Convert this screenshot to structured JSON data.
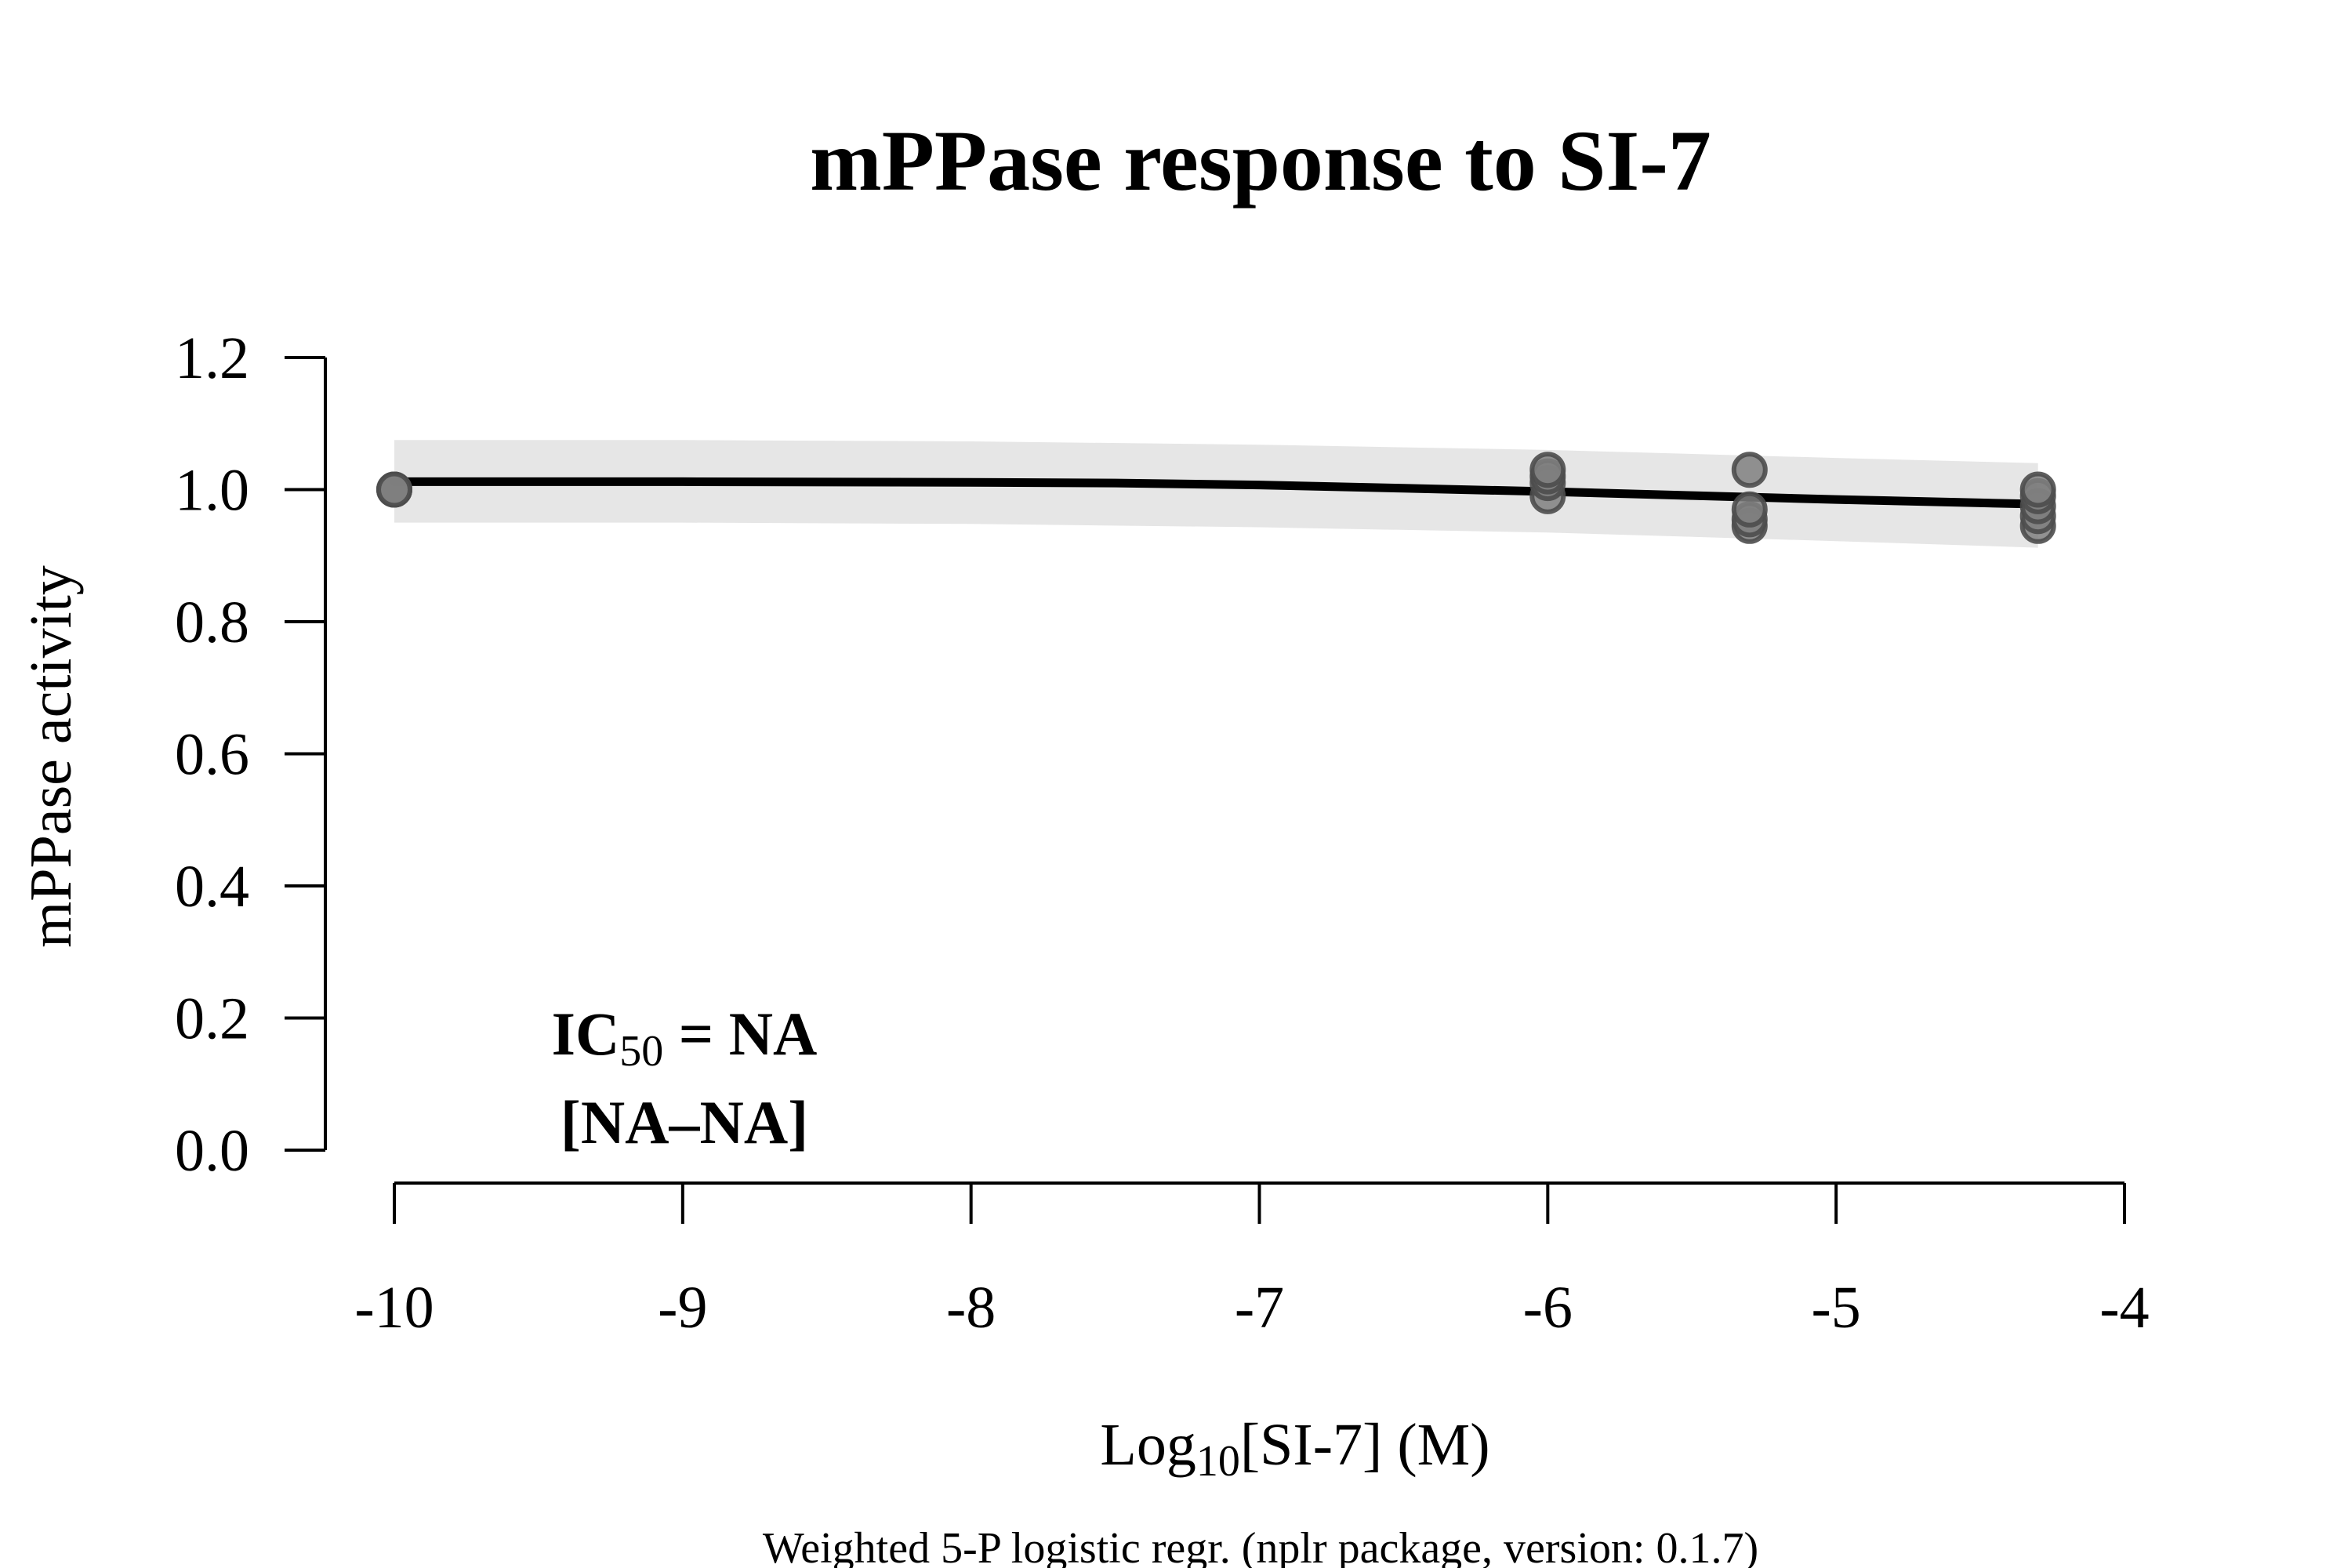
{
  "chart_data": {
    "type": "scatter",
    "title": "mPPase response to SI-7",
    "xlabel_prefix": "Log",
    "xlabel_subscript": "10",
    "xlabel_suffix": "[SI-7] (M)",
    "ylabel": "mPPase activity",
    "xlim": [
      -10,
      -4
    ],
    "ylim": [
      0,
      1.2
    ],
    "x_ticks": [
      -10,
      -9,
      -8,
      -7,
      -6,
      -5,
      -4
    ],
    "x_tick_labels": [
      "-10",
      "-9",
      "-8",
      "-7",
      "-6",
      "-5",
      "-4"
    ],
    "y_ticks": [
      0,
      0.2,
      0.4,
      0.6,
      0.8,
      1.0,
      1.2
    ],
    "y_tick_labels": [
      "0.0",
      "0.2",
      "0.4",
      "0.6",
      "0.8",
      "1.0",
      "1.2"
    ],
    "points": [
      {
        "x": -10,
        "y": 1.0
      },
      {
        "x": -10,
        "y": 1.0
      },
      {
        "x": -10,
        "y": 1.0
      },
      {
        "x": -6,
        "y": 0.99
      },
      {
        "x": -6,
        "y": 1.01
      },
      {
        "x": -6,
        "y": 1.02
      },
      {
        "x": -6,
        "y": 1.03
      },
      {
        "x": -5.3,
        "y": 0.945
      },
      {
        "x": -5.3,
        "y": 0.955
      },
      {
        "x": -5.3,
        "y": 0.97
      },
      {
        "x": -5.3,
        "y": 1.03
      },
      {
        "x": -4.3,
        "y": 0.945
      },
      {
        "x": -4.3,
        "y": 0.96
      },
      {
        "x": -4.3,
        "y": 0.975
      },
      {
        "x": -4.3,
        "y": 0.99
      },
      {
        "x": -4.3,
        "y": 1.0
      }
    ],
    "fit_curve": {
      "x": [
        -10,
        -9,
        -8,
        -7.5,
        -7,
        -6.5,
        -6,
        -5.5,
        -5,
        -4.5,
        -4.3
      ],
      "y": [
        1.012,
        1.012,
        1.011,
        1.01,
        1.007,
        1.002,
        0.997,
        0.991,
        0.985,
        0.98,
        0.978
      ]
    },
    "confidence_band": {
      "x": [
        -10,
        -9,
        -8,
        -7,
        -6,
        -5,
        -4.3
      ],
      "upper": [
        1.075,
        1.075,
        1.073,
        1.068,
        1.06,
        1.048,
        1.04
      ],
      "lower": [
        0.95,
        0.95,
        0.948,
        0.943,
        0.935,
        0.922,
        0.912
      ]
    },
    "annotation": {
      "line1_prefix": "IC",
      "line1_subscript": "50",
      "line1_suffix": " = NA",
      "line2": "[NA–NA]"
    },
    "footer": "Weighted 5-P logistic regr. (nplr package, version: 0.1.7)",
    "colors": {
      "points_fill": "#7f7f7f",
      "points_stroke": "#4d4d4d",
      "fit_line": "#000000",
      "band": "#e6e6e6",
      "axis": "#000000"
    }
  }
}
